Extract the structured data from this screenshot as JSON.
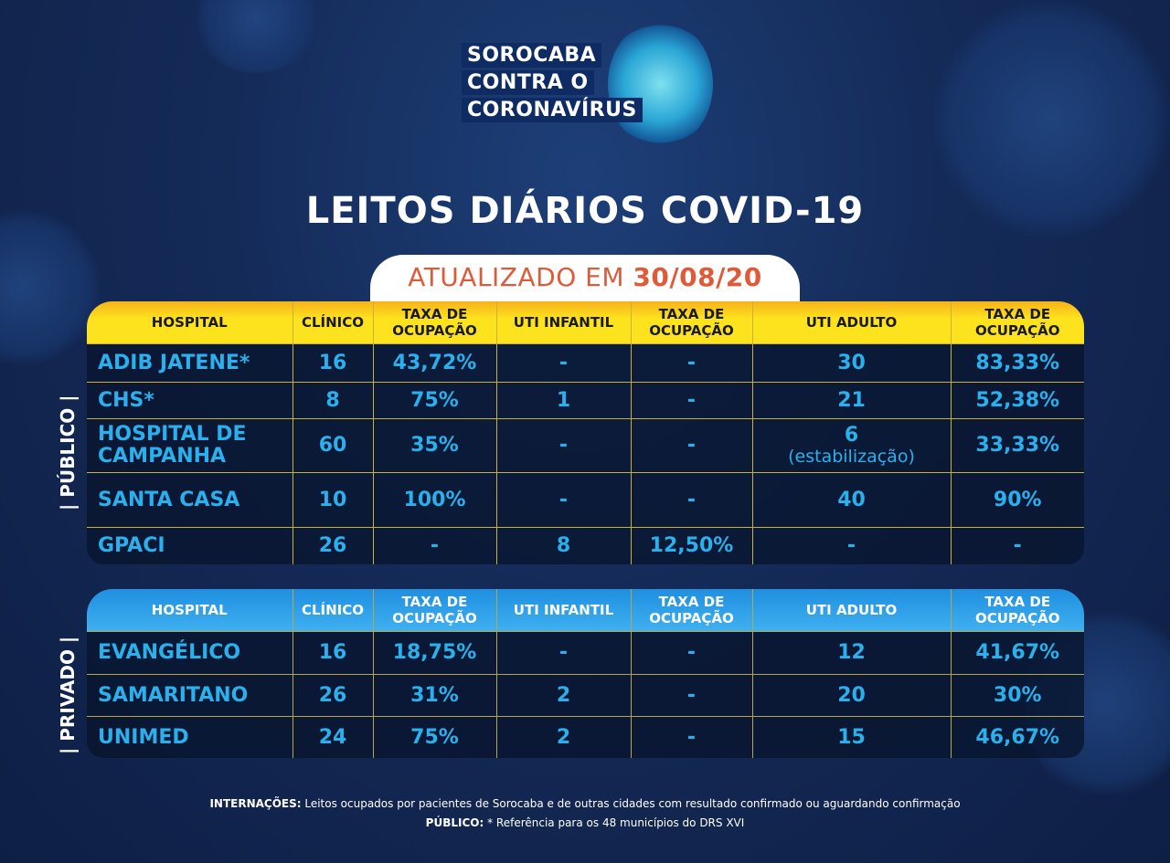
{
  "logo": {
    "lines": [
      "SOROCABA",
      "CONTRA O",
      "CORONAVÍRUS"
    ]
  },
  "title": "LEITOS DIÁRIOS COVID-19",
  "updated": {
    "label": "ATUALIZADO EM",
    "date": "30/08/20"
  },
  "headers": [
    "HOSPITAL",
    "CLÍNICO",
    "TAXA DE OCUPAÇÃO",
    "UTI INFANTIL",
    "TAXA DE OCUPAÇÃO",
    "UTI ADULTO",
    "TAXA DE OCUPAÇÃO"
  ],
  "publico": {
    "label": "| PÚBLICO |",
    "rows": [
      [
        "ADIB JATENE*",
        "16",
        "43,72%",
        "-",
        "-",
        "30",
        "83,33%"
      ],
      [
        "CHS*",
        "8",
        "75%",
        "1",
        "-",
        "21",
        "52,38%"
      ],
      [
        "HOSPITAL DE CAMPANHA",
        "60",
        "35%",
        "-",
        "-",
        "6",
        "33,33%"
      ],
      [
        "SANTA CASA",
        "10",
        "100%",
        "-",
        "-",
        "40",
        "90%"
      ],
      [
        "GPACI",
        "26",
        "-",
        "8",
        "12,50%",
        "-",
        "-"
      ]
    ],
    "note": "(estabilização)"
  },
  "privado": {
    "label": "| PRIVADO |",
    "rows": [
      [
        "EVANGÉLICO",
        "16",
        "18,75%",
        "-",
        "-",
        "12",
        "41,67%"
      ],
      [
        "SAMARITANO",
        "26",
        "31%",
        "2",
        "-",
        "20",
        "30%"
      ],
      [
        "UNIMED",
        "24",
        "75%",
        "2",
        "-",
        "15",
        "46,67%"
      ]
    ]
  },
  "footer": {
    "l1_bold": "INTERNAÇÕES:",
    "l1": " Leitos ocupados por pacientes de Sorocaba e de outras cidades com resultado confirmado ou aguardando confirmação",
    "l2_bold": "PÚBLICO:",
    "l2": " * Referência para os 48 municípios do DRS XVI"
  }
}
